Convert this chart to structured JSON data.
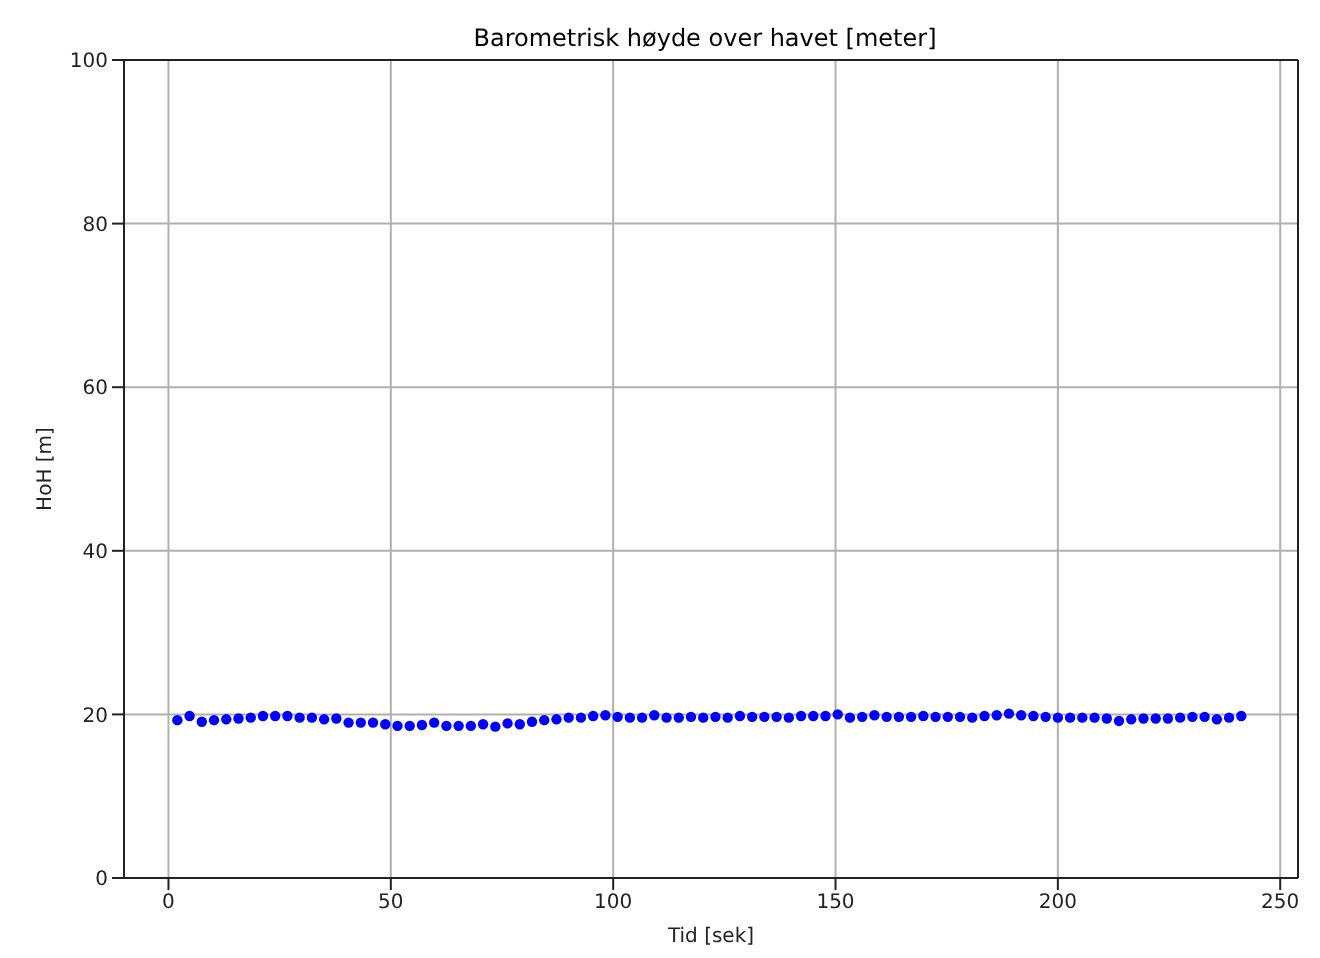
{
  "chart_data": {
    "type": "scatter",
    "title": "Barometrisk høyde over havet [meter]",
    "xlabel": "Tid [sek]",
    "ylabel": "HoH [m]",
    "x": [
      2,
      4.75,
      7.5,
      10.25,
      13,
      15.75,
      18.5,
      21.25,
      24,
      26.75,
      29.5,
      32.25,
      35,
      37.75,
      40.5,
      43.25,
      46,
      48.75,
      51.5,
      54.25,
      57,
      59.75,
      62.5,
      65.25,
      68,
      70.75,
      73.5,
      76.25,
      79,
      81.75,
      84.5,
      87.25,
      90,
      92.75,
      95.5,
      98.25,
      101,
      103.75,
      106.5,
      109.25,
      112,
      114.75,
      117.5,
      120.25,
      123,
      125.75,
      128.5,
      131.25,
      134,
      136.75,
      139.5,
      142.25,
      145,
      147.75,
      150.5,
      153.25,
      156,
      158.75,
      161.5,
      164.25,
      167,
      169.75,
      172.5,
      175.25,
      178,
      180.75,
      183.5,
      186.25,
      189,
      191.75,
      194.5,
      197.25,
      200,
      202.75,
      205.5,
      208.25,
      211,
      213.75,
      216.5,
      219.25,
      222,
      224.75,
      227.5,
      230.25,
      233,
      235.75,
      238.5,
      241.25
    ],
    "series": [
      {
        "color": "#0000ff",
        "values": [
          19.3,
          19.8,
          19.1,
          19.3,
          19.4,
          19.5,
          19.6,
          19.8,
          19.8,
          19.8,
          19.6,
          19.6,
          19.4,
          19.5,
          19.0,
          19.0,
          19.0,
          18.8,
          18.6,
          18.6,
          18.7,
          19.0,
          18.6,
          18.6,
          18.6,
          18.8,
          18.5,
          18.9,
          18.8,
          19.1,
          19.3,
          19.4,
          19.6,
          19.6,
          19.8,
          19.9,
          19.7,
          19.6,
          19.6,
          19.9,
          19.6,
          19.6,
          19.7,
          19.6,
          19.7,
          19.6,
          19.8,
          19.7,
          19.7,
          19.7,
          19.6,
          19.8,
          19.8,
          19.8,
          20.0,
          19.6,
          19.7,
          19.9,
          19.7,
          19.7,
          19.7,
          19.8,
          19.7,
          19.7,
          19.7,
          19.6,
          19.8,
          19.9,
          20.1,
          19.9,
          19.8,
          19.7,
          19.6,
          19.6,
          19.6,
          19.6,
          19.5,
          19.2,
          19.4,
          19.5,
          19.5,
          19.5,
          19.6,
          19.7,
          19.7,
          19.4,
          19.6,
          19.8
        ]
      }
    ],
    "xlim": [
      -10,
      254
    ],
    "xticks": [
      0,
      50,
      100,
      150,
      200,
      250
    ],
    "ylim": [
      0,
      100
    ],
    "yticks": [
      0,
      20,
      40,
      60,
      80,
      100
    ],
    "grid": true,
    "marker": "circle"
  }
}
